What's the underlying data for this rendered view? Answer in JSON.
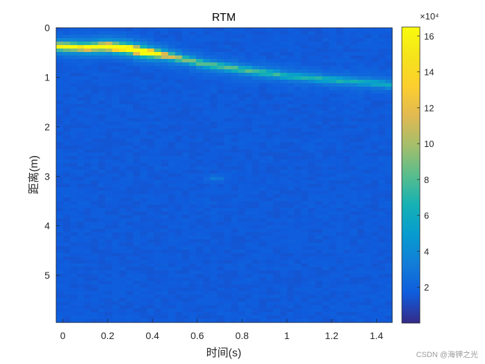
{
  "chart_data": {
    "type": "heatmap",
    "title": "RTM",
    "xlabel": "时间(s)",
    "ylabel": "距离(m)",
    "xlim": [
      -0.03,
      1.47
    ],
    "ylim": [
      0,
      5.95
    ],
    "y_reversed": true,
    "xticks": [
      0,
      0.2,
      0.4,
      0.6,
      0.8,
      1,
      1.2,
      1.4
    ],
    "xtick_labels": [
      "0",
      "0.2",
      "0.4",
      "0.6",
      "0.8",
      "1",
      "1.2",
      "1.4"
    ],
    "yticks": [
      0,
      1,
      2,
      3,
      4,
      5
    ],
    "ytick_labels": [
      "0",
      "1",
      "2",
      "3",
      "4",
      "5"
    ],
    "colormap": "parula",
    "colorbar": {
      "range": [
        0,
        165000
      ],
      "ticks": [
        20000,
        40000,
        60000,
        80000,
        100000,
        120000,
        140000,
        160000
      ],
      "tick_labels": [
        "2",
        "4",
        "6",
        "8",
        "10",
        "12",
        "14",
        "16"
      ],
      "exponent_label": "×10⁴"
    },
    "background_value": 16000,
    "ridge": {
      "x": [
        0.0,
        0.1,
        0.2,
        0.3,
        0.35,
        0.45,
        0.55,
        0.65,
        0.8,
        1.0,
        1.2,
        1.4,
        1.45
      ],
      "y": [
        0.38,
        0.4,
        0.38,
        0.43,
        0.48,
        0.55,
        0.65,
        0.75,
        0.85,
        0.97,
        1.06,
        1.12,
        1.15
      ],
      "peak": [
        110000,
        120000,
        145000,
        160000,
        165000,
        90000,
        60000,
        55000,
        50000,
        40000,
        38000,
        35000,
        35000
      ]
    },
    "weak_spot": {
      "x": 0.68,
      "y": 3.04,
      "value": 30000
    }
  },
  "watermark": "CSDN @海钾之光"
}
